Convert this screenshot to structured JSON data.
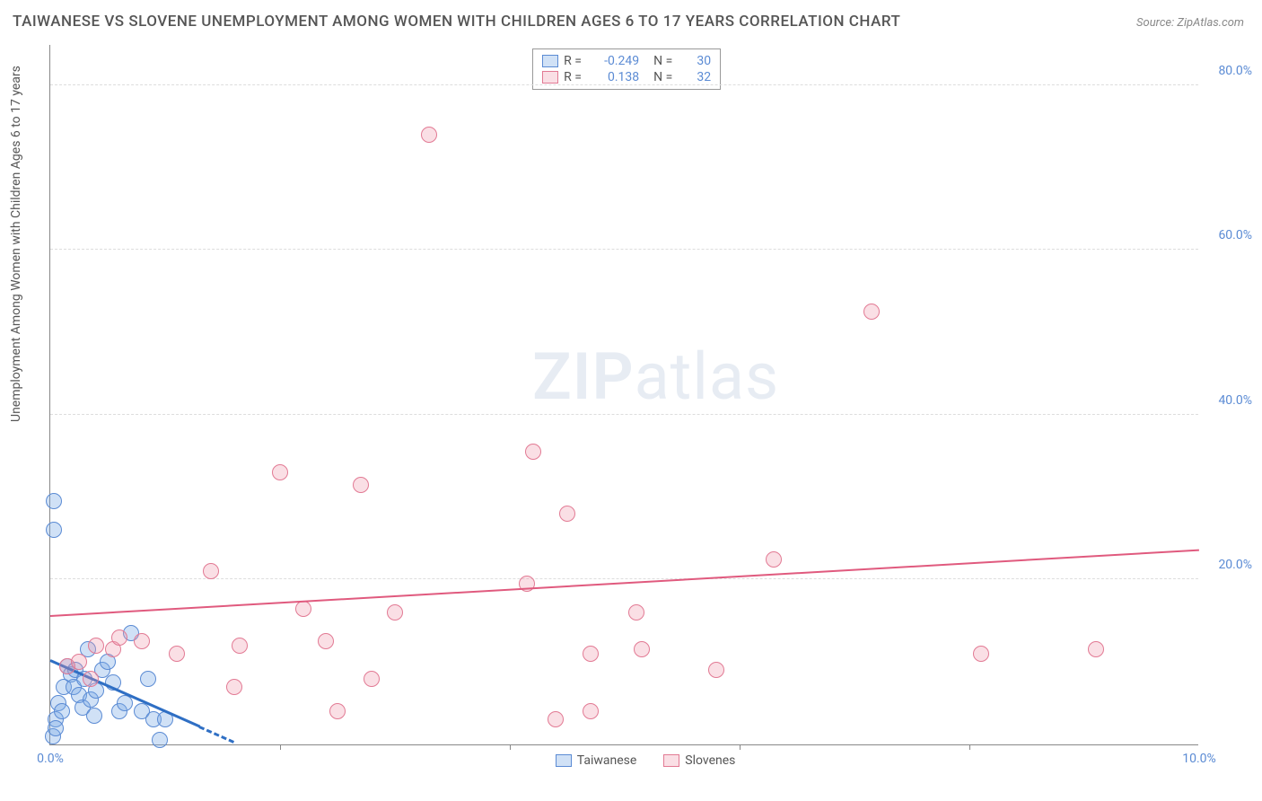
{
  "title": "TAIWANESE VS SLOVENE UNEMPLOYMENT AMONG WOMEN WITH CHILDREN AGES 6 TO 17 YEARS CORRELATION CHART",
  "source": "Source: ZipAtlas.com",
  "yaxis_label": "Unemployment Among Women with Children Ages 6 to 17 years",
  "watermark": {
    "left": "ZIP",
    "right": "atlas"
  },
  "chart": {
    "type": "scatter",
    "background_color": "#ffffff",
    "grid_color": "#dddddd",
    "axis_color": "#888888",
    "tick_color": "#5b8bd4",
    "xlim": [
      0,
      10
    ],
    "ylim": [
      0,
      85
    ],
    "xticks": [
      0.0,
      10.0
    ],
    "xtick_labels": [
      "0.0%",
      "10.0%"
    ],
    "xtick_marks": [
      2.0,
      4.0,
      6.0,
      8.0
    ],
    "yticks": [
      20.0,
      40.0,
      60.0,
      80.0
    ],
    "ytick_labels": [
      "20.0%",
      "40.0%",
      "60.0%",
      "80.0%"
    ],
    "marker_radius": 9,
    "marker_stroke_width": 1.5,
    "series": [
      {
        "name": "Taiwanese",
        "fill": "rgba(120,170,230,0.35)",
        "stroke": "#5b8bd4",
        "R": "-0.249",
        "N": "30",
        "trend": {
          "x1": 0.0,
          "y1": 10.0,
          "x2": 1.3,
          "y2": 2.0,
          "dash_extend_to_x": 1.6,
          "color": "#2f6fc4",
          "width": 3
        },
        "points": [
          [
            0.02,
            1.0
          ],
          [
            0.05,
            3.0
          ],
          [
            0.07,
            5.0
          ],
          [
            0.1,
            4.0
          ],
          [
            0.12,
            7.0
          ],
          [
            0.15,
            9.5
          ],
          [
            0.18,
            8.5
          ],
          [
            0.2,
            7.0
          ],
          [
            0.22,
            9.0
          ],
          [
            0.25,
            6.0
          ],
          [
            0.28,
            4.5
          ],
          [
            0.3,
            8.0
          ],
          [
            0.33,
            11.5
          ],
          [
            0.35,
            5.5
          ],
          [
            0.38,
            3.5
          ],
          [
            0.4,
            6.5
          ],
          [
            0.45,
            9.0
          ],
          [
            0.5,
            10.0
          ],
          [
            0.55,
            7.5
          ],
          [
            0.05,
            2.0
          ],
          [
            0.6,
            4.0
          ],
          [
            0.65,
            5.0
          ],
          [
            0.7,
            13.5
          ],
          [
            0.8,
            4.0
          ],
          [
            0.85,
            8.0
          ],
          [
            0.9,
            3.0
          ],
          [
            0.95,
            0.5
          ],
          [
            1.0,
            3.0
          ],
          [
            0.03,
            26.0
          ],
          [
            0.03,
            29.5
          ]
        ]
      },
      {
        "name": "Slovenes",
        "fill": "rgba(240,150,170,0.30)",
        "stroke": "#e27a94",
        "R": "0.138",
        "N": "32",
        "trend": {
          "x1": 0.0,
          "y1": 15.5,
          "x2": 10.0,
          "y2": 23.5,
          "color": "#e05a7e",
          "width": 2
        },
        "points": [
          [
            0.15,
            9.5
          ],
          [
            0.25,
            10.0
          ],
          [
            0.35,
            8.0
          ],
          [
            0.4,
            12.0
          ],
          [
            0.55,
            11.5
          ],
          [
            0.6,
            13.0
          ],
          [
            0.8,
            12.5
          ],
          [
            1.1,
            11.0
          ],
          [
            1.4,
            21.0
          ],
          [
            1.6,
            7.0
          ],
          [
            1.65,
            12.0
          ],
          [
            2.0,
            33.0
          ],
          [
            2.2,
            16.5
          ],
          [
            2.4,
            12.5
          ],
          [
            2.5,
            4.0
          ],
          [
            2.8,
            8.0
          ],
          [
            2.7,
            31.5
          ],
          [
            3.0,
            16.0
          ],
          [
            3.3,
            74.0
          ],
          [
            4.15,
            19.5
          ],
          [
            4.2,
            35.5
          ],
          [
            4.4,
            3.0
          ],
          [
            4.5,
            28.0
          ],
          [
            4.7,
            4.0
          ],
          [
            4.7,
            11.0
          ],
          [
            5.1,
            16.0
          ],
          [
            5.15,
            11.5
          ],
          [
            5.8,
            9.0
          ],
          [
            6.3,
            22.5
          ],
          [
            7.15,
            52.5
          ],
          [
            8.1,
            11.0
          ],
          [
            9.1,
            11.5
          ]
        ]
      }
    ]
  },
  "stat_legend": {
    "r_label": "R =",
    "n_label": "N ="
  }
}
